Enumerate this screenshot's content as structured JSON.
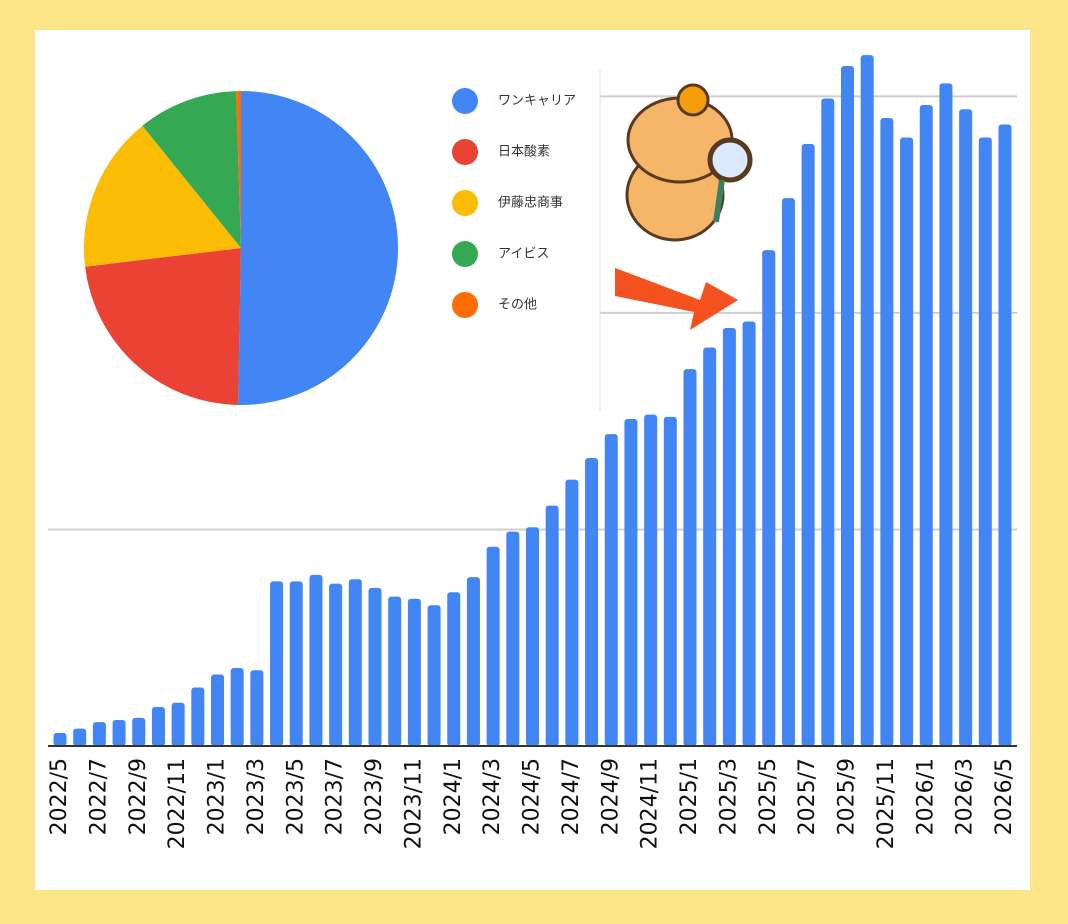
{
  "chart_data": [
    {
      "type": "bar",
      "categories": [
        "2022/5",
        null,
        "2022/7",
        null,
        "2022/9",
        null,
        "2022/11",
        null,
        "2023/1",
        null,
        "2023/3",
        null,
        "2023/5",
        null,
        "2023/7",
        null,
        "2023/9",
        null,
        "2023/11",
        null,
        "2024/1",
        null,
        "2024/3",
        null,
        "2024/5",
        null,
        "2024/7",
        null,
        "2024/9",
        null,
        "2024/11",
        null,
        "2025/1",
        null,
        "2025/3",
        null,
        "2025/5",
        null,
        "2025/7",
        null,
        "2025/9",
        null,
        "2025/11",
        null,
        "2026/1",
        null,
        "2026/3",
        null,
        "2026/5"
      ],
      "values": [
        0.06,
        0.08,
        0.11,
        0.12,
        0.13,
        0.18,
        0.2,
        0.27,
        0.33,
        0.36,
        0.35,
        0.76,
        0.76,
        0.79,
        0.75,
        0.77,
        0.73,
        0.69,
        0.68,
        0.65,
        0.71,
        0.78,
        0.92,
        0.99,
        1.01,
        1.11,
        1.23,
        1.33,
        1.44,
        1.51,
        1.53,
        1.52,
        1.74,
        1.84,
        1.93,
        1.96,
        2.29,
        2.53,
        2.78,
        2.99,
        3.14,
        3.19,
        2.9,
        2.81,
        2.96,
        3.06,
        2.94,
        2.81,
        2.87
      ],
      "color": "#4285f4",
      "ylim": [
        0,
        3.2
      ],
      "yticks": [
        1,
        2,
        3
      ],
      "grid": true
    },
    {
      "type": "pie",
      "labels": [
        "ワンキャリア",
        "日本酸素",
        "伊藤忠商事",
        "アイビス",
        "その他"
      ],
      "values": [
        50.3,
        22.8,
        16.1,
        10.3,
        0.5
      ],
      "colors": [
        "#4285f4",
        "#ea4335",
        "#fbbc04",
        "#34a853",
        "#ff6d01"
      ]
    }
  ]
}
